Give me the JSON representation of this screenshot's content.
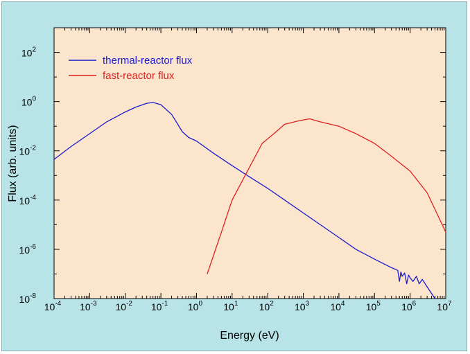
{
  "chart_data": {
    "type": "line",
    "xlabel": "Energy (eV)",
    "ylabel": "Flux (arb. units)",
    "xscale": "log",
    "yscale": "log",
    "xlim": [
      0.0001,
      10000000
    ],
    "ylim": [
      1e-08,
      1000
    ],
    "x_tick_exponents": [
      -4,
      -3,
      -2,
      -1,
      0,
      1,
      2,
      3,
      4,
      5,
      6,
      7
    ],
    "y_tick_exponents": [
      -8,
      -6,
      -4,
      -2,
      0,
      2
    ],
    "tick_base": "10",
    "legend_position": "top-left",
    "series": [
      {
        "name": "thermal-reactor flux",
        "color": "#1a1acc",
        "points": [
          [
            0.0001,
            0.0045
          ],
          [
            0.0003,
            0.015
          ],
          [
            0.001,
            0.05
          ],
          [
            0.003,
            0.15
          ],
          [
            0.01,
            0.38
          ],
          [
            0.02,
            0.6
          ],
          [
            0.04,
            0.85
          ],
          [
            0.06,
            0.92
          ],
          [
            0.1,
            0.75
          ],
          [
            0.2,
            0.3
          ],
          [
            0.4,
            0.06
          ],
          [
            0.6,
            0.035
          ],
          [
            1,
            0.025
          ],
          [
            3,
            0.008
          ],
          [
            10,
            0.0025
          ],
          [
            30,
            0.0009
          ],
          [
            100,
            0.0003
          ],
          [
            300,
            0.0001
          ],
          [
            1000,
            3e-05
          ],
          [
            3000,
            1e-05
          ],
          [
            10000,
            3e-06
          ],
          [
            30000,
            1e-06
          ],
          [
            100000,
            4e-07
          ],
          [
            300000,
            1.8e-07
          ],
          [
            450000,
            1.4e-07
          ],
          [
            500000,
            5e-08
          ],
          [
            550000,
            1.2e-07
          ],
          [
            600000,
            8e-08
          ],
          [
            700000,
            1.1e-07
          ],
          [
            800000,
            4e-08
          ],
          [
            900000,
            9e-08
          ],
          [
            1000000,
            7e-08
          ],
          [
            1200000,
            5e-08
          ],
          [
            1500000,
            8e-08
          ],
          [
            1800000,
            4e-08
          ],
          [
            2200000,
            6e-08
          ],
          [
            3000000,
            3e-08
          ],
          [
            5000000,
            1e-08
          ]
        ]
      },
      {
        "name": "fast-reactor flux",
        "color": "#dd2020",
        "points": [
          [
            2,
            1e-07
          ],
          [
            5,
            5e-06
          ],
          [
            10,
            0.0001
          ],
          [
            30,
            0.002
          ],
          [
            70,
            0.02
          ],
          [
            150,
            0.05
          ],
          [
            300,
            0.12
          ],
          [
            800,
            0.17
          ],
          [
            1500,
            0.2
          ],
          [
            3000,
            0.15
          ],
          [
            10000,
            0.1
          ],
          [
            30000,
            0.05
          ],
          [
            100000,
            0.02
          ],
          [
            300000,
            0.006
          ],
          [
            1000000,
            0.0015
          ],
          [
            3000000,
            0.0002
          ],
          [
            10000000,
            5e-06
          ]
        ]
      }
    ]
  }
}
